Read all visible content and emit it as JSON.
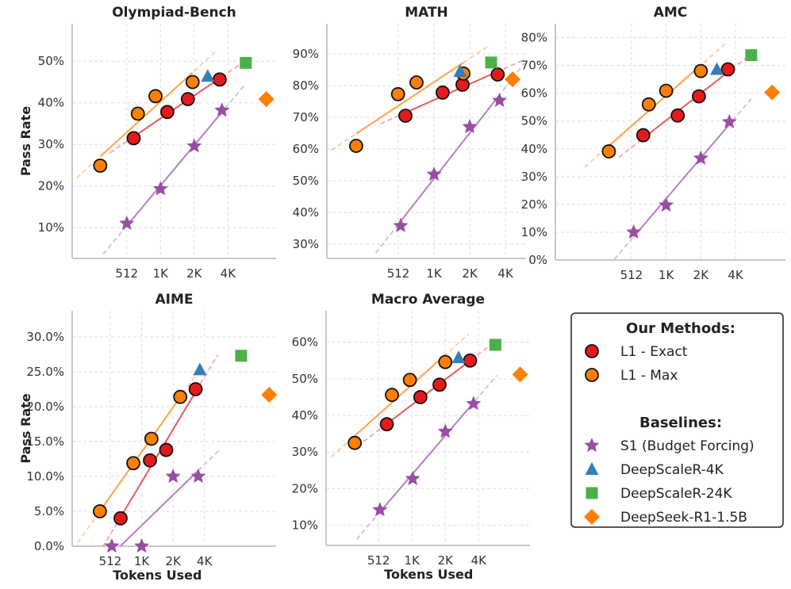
{
  "chart_data": [
    {
      "type": "scatter",
      "title": "Olympiad-Bench",
      "ylabel": "Pass Rate",
      "xlabel": "",
      "xscale": "log2",
      "xlim": [
        167,
        11000
      ],
      "ylim": [
        2.6,
        59
      ],
      "grid": true,
      "xticks": [
        512,
        1024,
        2048,
        4096
      ],
      "xtick_labels": [
        "512",
        "1K",
        "2K",
        "4K"
      ],
      "yticks": [
        10,
        20,
        30,
        40,
        50
      ],
      "ytick_labels": [
        "10%",
        "20%",
        "30%",
        "40%",
        "50%"
      ],
      "series": [
        {
          "name": "L1 - Exact",
          "marker": "circle",
          "color": "#e41a1c",
          "fit": true,
          "x": [
            590,
            1178,
            1797,
            3452
          ],
          "y": [
            31.5,
            37.8,
            40.9,
            45.6
          ]
        },
        {
          "name": "L1 - Max",
          "marker": "circle",
          "color": "#ff7f00",
          "fit": true,
          "x": [
            297,
            643,
            924,
            1980
          ],
          "y": [
            24.9,
            37.4,
            41.6,
            45.0
          ]
        },
        {
          "name": "S1 (Budget Forcing)",
          "marker": "star",
          "color": "#984ea3",
          "fit": true,
          "x": [
            512,
            1024,
            2048,
            3620
          ],
          "y": [
            11.0,
            19.3,
            29.6,
            38.2
          ]
        },
        {
          "name": "DeepScaleR-4K",
          "marker": "triangle",
          "color": "#377eb8",
          "x": [
            2702
          ],
          "y": [
            46.4
          ]
        },
        {
          "name": "DeepScaleR-24K",
          "marker": "square",
          "color": "#4daf4a",
          "x": [
            5900
          ],
          "y": [
            49.6
          ]
        },
        {
          "name": "DeepSeek-R1-1.5B",
          "marker": "diamond",
          "color": "#ff7f00",
          "x": [
            9000
          ],
          "y": [
            40.9
          ]
        }
      ]
    },
    {
      "type": "scatter",
      "title": "MATH",
      "ylabel": "",
      "xlabel": "",
      "xscale": "log2",
      "xlim": [
        128,
        6100
      ],
      "ylim": [
        25.5,
        99.5
      ],
      "grid": true,
      "xticks": [
        512,
        1024,
        2048,
        4096
      ],
      "xtick_labels": [
        "512",
        "1K",
        "2K",
        "4K"
      ],
      "yticks": [
        30,
        40,
        50,
        60,
        70,
        80,
        90
      ],
      "ytick_labels": [
        "30%",
        "40%",
        "50%",
        "60%",
        "70%",
        "80%",
        "90%"
      ],
      "series": [
        {
          "name": "L1 - Exact",
          "marker": "circle",
          "color": "#e41a1c",
          "fit": true,
          "x": [
            588,
            1210,
            1780,
            3520
          ],
          "y": [
            70.5,
            77.8,
            80.3,
            83.5
          ]
        },
        {
          "name": "L1 - Max",
          "marker": "circle",
          "color": "#ff7f00",
          "fit": true,
          "x": [
            226,
            509,
            729,
            1810
          ],
          "y": [
            61.0,
            77.3,
            81.0,
            83.8
          ]
        },
        {
          "name": "S1 (Budget Forcing)",
          "marker": "star",
          "color": "#984ea3",
          "fit": true,
          "x": [
            536,
            1024,
            2048,
            3650
          ],
          "y": [
            35.8,
            52.0,
            67.0,
            75.3
          ]
        },
        {
          "name": "DeepScaleR-4K",
          "marker": "triangle",
          "color": "#377eb8",
          "x": [
            1700
          ],
          "y": [
            84.5
          ]
        },
        {
          "name": "DeepScaleR-24K",
          "marker": "square",
          "color": "#4daf4a",
          "x": [
            3100
          ],
          "y": [
            87.3
          ]
        },
        {
          "name": "DeepSeek-R1-1.5B",
          "marker": "diamond",
          "color": "#ff7f00",
          "x": [
            4700
          ],
          "y": [
            82.0
          ]
        }
      ]
    },
    {
      "type": "scatter",
      "title": "AMC",
      "ylabel": "",
      "xlabel": "",
      "xscale": "log2",
      "xlim": [
        112,
        11100
      ],
      "ylim": [
        0,
        85
      ],
      "grid": true,
      "xticks": [
        512,
        1024,
        2048,
        4096
      ],
      "xtick_labels": [
        "512",
        "1K",
        "2K",
        "4K"
      ],
      "yticks": [
        0,
        10,
        20,
        30,
        40,
        50,
        60,
        70,
        80
      ],
      "ytick_labels": [
        "0%",
        "10%",
        "20%",
        "30%",
        "40%",
        "50%",
        "60%",
        "70%",
        "80%"
      ],
      "series": [
        {
          "name": "L1 - Exact",
          "marker": "circle",
          "color": "#e41a1c",
          "fit": true,
          "x": [
            648,
            1290,
            1970,
            3520
          ],
          "y": [
            44.9,
            52.0,
            58.9,
            68.6
          ]
        },
        {
          "name": "L1 - Max",
          "marker": "circle",
          "color": "#ff7f00",
          "fit": true,
          "x": [
            326,
            724,
            1024,
            2048
          ],
          "y": [
            39.1,
            56.0,
            60.9,
            68.0
          ]
        },
        {
          "name": "S1 (Budget Forcing)",
          "marker": "star",
          "color": "#984ea3",
          "fit": true,
          "x": [
            535,
            1024,
            2048,
            3620
          ],
          "y": [
            10.0,
            19.7,
            36.6,
            49.7
          ]
        },
        {
          "name": "DeepScaleR-4K",
          "marker": "triangle",
          "color": "#377eb8",
          "x": [
            2820
          ],
          "y": [
            68.6
          ]
        },
        {
          "name": "DeepScaleR-24K",
          "marker": "square",
          "color": "#4daf4a",
          "x": [
            5600
          ],
          "y": [
            73.7
          ]
        },
        {
          "name": "DeepSeek-R1-1.5B",
          "marker": "diamond",
          "color": "#ff7f00",
          "x": [
            8500
          ],
          "y": [
            60.3
          ]
        }
      ]
    },
    {
      "type": "scatter",
      "title": "AIME",
      "ylabel": "Pass Rate",
      "xlabel": "Tokens Used",
      "xscale": "log2",
      "xlim": [
        221,
        19900
      ],
      "ylim": [
        0,
        33.75
      ],
      "grid": true,
      "xticks": [
        512,
        1024,
        2048,
        4096
      ],
      "xtick_labels": [
        "512",
        "1K",
        "2K",
        "4K"
      ],
      "yticks": [
        0,
        5,
        10,
        15,
        20,
        25,
        30
      ],
      "ytick_labels": [
        "0.0%",
        "5.0%",
        "10.0%",
        "15.0%",
        "20.0%",
        "25.0%",
        "30.0%"
      ],
      "series": [
        {
          "name": "L1 - Exact",
          "marker": "circle",
          "color": "#e41a1c",
          "fit": true,
          "x": [
            643,
            1230,
            1760,
            3370
          ],
          "y": [
            4.0,
            12.3,
            13.8,
            22.5
          ]
        },
        {
          "name": "L1 - Max",
          "marker": "circle",
          "color": "#ff7f00",
          "fit": true,
          "x": [
            407,
            852,
            1270,
            2400
          ],
          "y": [
            5.0,
            11.9,
            15.4,
            21.4
          ]
        },
        {
          "name": "S1 (Budget Forcing)",
          "marker": "star",
          "color": "#984ea3",
          "fit": true,
          "x": [
            530,
            1024,
            2048,
            3570
          ],
          "y": [
            0.0,
            0.0,
            10.0,
            10.0
          ]
        },
        {
          "name": "DeepScaleR-4K",
          "marker": "triangle",
          "color": "#377eb8",
          "x": [
            3700
          ],
          "y": [
            25.3
          ]
        },
        {
          "name": "DeepScaleR-24K",
          "marker": "square",
          "color": "#4daf4a",
          "x": [
            9200
          ],
          "y": [
            27.3
          ]
        },
        {
          "name": "DeepSeek-R1-1.5B",
          "marker": "diamond",
          "color": "#ff7f00",
          "x": [
            17100
          ],
          "y": [
            21.7
          ]
        }
      ]
    },
    {
      "type": "scatter",
      "title": "Macro Average",
      "ylabel": "",
      "xlabel": "Tokens Used",
      "xscale": "log2",
      "xlim": [
        172,
        11900
      ],
      "ylim": [
        4.5,
        68.6
      ],
      "grid": true,
      "xticks": [
        512,
        1024,
        2048,
        4096
      ],
      "xtick_labels": [
        "512",
        "1K",
        "2K",
        "4K"
      ],
      "yticks": [
        10,
        20,
        30,
        40,
        50,
        60
      ],
      "ytick_labels": [
        "10%",
        "20%",
        "30%",
        "40%",
        "50%",
        "60%"
      ],
      "series": [
        {
          "name": "L1 - Exact",
          "marker": "circle",
          "color": "#e41a1c",
          "fit": true,
          "x": [
            608,
            1220,
            1817,
            3430
          ],
          "y": [
            37.6,
            45.0,
            48.4,
            55.0
          ]
        },
        {
          "name": "L1 - Max",
          "marker": "circle",
          "color": "#ff7f00",
          "fit": true,
          "x": [
            312,
            676,
            981,
            2048
          ],
          "y": [
            32.5,
            45.6,
            49.7,
            54.6
          ]
        },
        {
          "name": "S1 (Budget Forcing)",
          "marker": "star",
          "color": "#984ea3",
          "fit": true,
          "x": [
            527,
            1040,
            2048,
            3680
          ],
          "y": [
            14.2,
            22.7,
            35.6,
            43.2
          ]
        },
        {
          "name": "DeepScaleR-4K",
          "marker": "triangle",
          "color": "#377eb8",
          "x": [
            2700
          ],
          "y": [
            55.8
          ]
        },
        {
          "name": "DeepScaleR-24K",
          "marker": "square",
          "color": "#4daf4a",
          "x": [
            5800
          ],
          "y": [
            59.3
          ]
        },
        {
          "name": "DeepSeek-R1-1.5B",
          "marker": "diamond",
          "color": "#ff7f00",
          "x": [
            9700
          ],
          "y": [
            51.2
          ]
        }
      ]
    }
  ],
  "legend": {
    "placement": "bottom-right",
    "groups": [
      {
        "title": "Our Methods:",
        "items": [
          {
            "label": "L1 - Exact",
            "marker": "circle",
            "color": "#e41a1c"
          },
          {
            "label": "L1 - Max",
            "marker": "circle",
            "color": "#ff7f00"
          }
        ]
      },
      {
        "title": "Baselines:",
        "items": [
          {
            "label": "S1 (Budget Forcing)",
            "marker": "star",
            "color": "#984ea3"
          },
          {
            "label": "DeepScaleR-4K",
            "marker": "triangle",
            "color": "#377eb8"
          },
          {
            "label": "DeepScaleR-24K",
            "marker": "square",
            "color": "#4daf4a"
          },
          {
            "label": "DeepSeek-R1-1.5B",
            "marker": "diamond",
            "color": "#ff7f00"
          }
        ]
      }
    ]
  }
}
